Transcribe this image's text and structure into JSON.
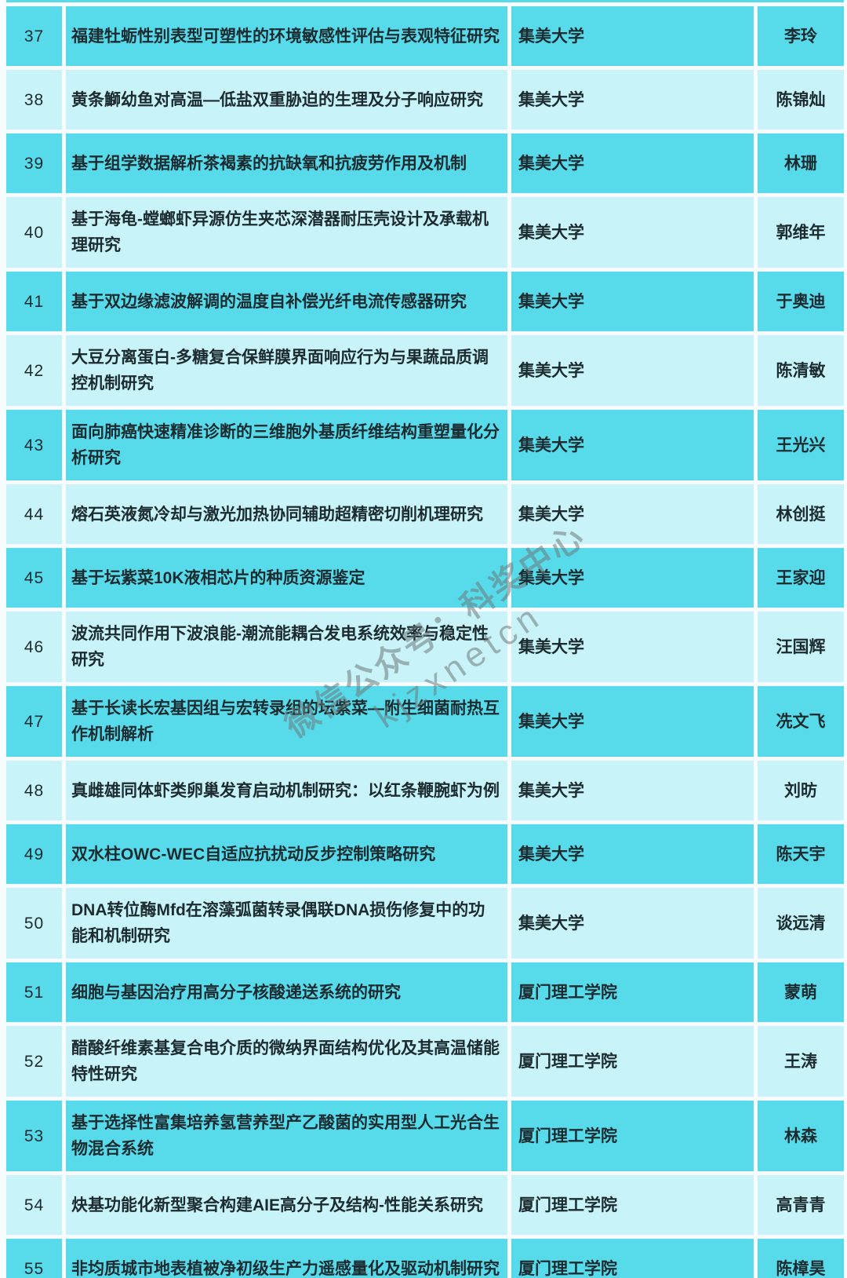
{
  "colors": {
    "row_bright": "#57DBEB",
    "row_light": "#C8F3F8",
    "background": "#F7FDFE",
    "text": "#1C2B2F",
    "watermark_gray": "#6E7A7C"
  },
  "watermark": {
    "line1": "微信公众号：科奖中心",
    "line2": "kjzxnetcn"
  },
  "table": {
    "rows": [
      {
        "no": "37",
        "title": "福建牡蛎性别表型可塑性的环境敏感性评估与表观特征研究",
        "institution": "集美大学",
        "leader": "李玲"
      },
      {
        "no": "38",
        "title": "黄条鰤幼鱼对高温—低盐双重胁迫的生理及分子响应研究",
        "institution": "集美大学",
        "leader": "陈锦灿"
      },
      {
        "no": "39",
        "title": "基于组学数据解析茶褐素的抗缺氧和抗疲劳作用及机制",
        "institution": "集美大学",
        "leader": "林珊"
      },
      {
        "no": "40",
        "title": "基于海龟-螳螂虾异源仿生夹芯深潜器耐压壳设计及承载机理研究",
        "institution": "集美大学",
        "leader": "郭维年"
      },
      {
        "no": "41",
        "title": "基于双边缘滤波解调的温度自补偿光纤电流传感器研究",
        "institution": "集美大学",
        "leader": "于奥迪"
      },
      {
        "no": "42",
        "title": "大豆分离蛋白-多糖复合保鲜膜界面响应行为与果蔬品质调控机制研究",
        "institution": "集美大学",
        "leader": "陈清敏"
      },
      {
        "no": "43",
        "title": "面向肺癌快速精准诊断的三维胞外基质纤维结构重塑量化分析研究",
        "institution": "集美大学",
        "leader": "王光兴"
      },
      {
        "no": "44",
        "title": "熔石英液氮冷却与激光加热协同辅助超精密切削机理研究",
        "institution": "集美大学",
        "leader": "林创挺"
      },
      {
        "no": "45",
        "title": "基于坛紫菜10K液相芯片的种质资源鉴定",
        "institution": "集美大学",
        "leader": "王家迎"
      },
      {
        "no": "46",
        "title": "波流共同作用下波浪能-潮流能耦合发电系统效率与稳定性研究",
        "institution": "集美大学",
        "leader": "汪国辉"
      },
      {
        "no": "47",
        "title": "基于长读长宏基因组与宏转录组的坛紫菜—附生细菌耐热互作机制解析",
        "institution": "集美大学",
        "leader": "冼文飞"
      },
      {
        "no": "48",
        "title": "真雌雄同体虾类卵巢发育启动机制研究：以红条鞭腕虾为例",
        "institution": "集美大学",
        "leader": "刘昉"
      },
      {
        "no": "49",
        "title": "双水柱OWC-WEC自适应抗扰动反步控制策略研究",
        "institution": "集美大学",
        "leader": "陈天宇"
      },
      {
        "no": "50",
        "title": "DNA转位酶Mfd在溶藻弧菌转录偶联DNA损伤修复中的功能和机制研究",
        "institution": "集美大学",
        "leader": "谈远清"
      },
      {
        "no": "51",
        "title": "细胞与基因治疗用高分子核酸递送系统的研究",
        "institution": "厦门理工学院",
        "leader": "蒙萌"
      },
      {
        "no": "52",
        "title": "醋酸纤维素基复合电介质的微纳界面结构优化及其高温储能特性研究",
        "institution": "厦门理工学院",
        "leader": "王涛"
      },
      {
        "no": "53",
        "title": "基于选择性富集培养氢营养型产乙酸菌的实用型人工光合生物混合系统",
        "institution": "厦门理工学院",
        "leader": "林森"
      },
      {
        "no": "54",
        "title": "炔基功能化新型聚合构建AIE高分子及结构-性能关系研究",
        "institution": "厦门理工学院",
        "leader": "高青青"
      },
      {
        "no": "55",
        "title": "非均质城市地表植被净初级生产力遥感量化及驱动机制研究",
        "institution": "厦门理工学院",
        "leader": "陈樟昊"
      }
    ]
  }
}
